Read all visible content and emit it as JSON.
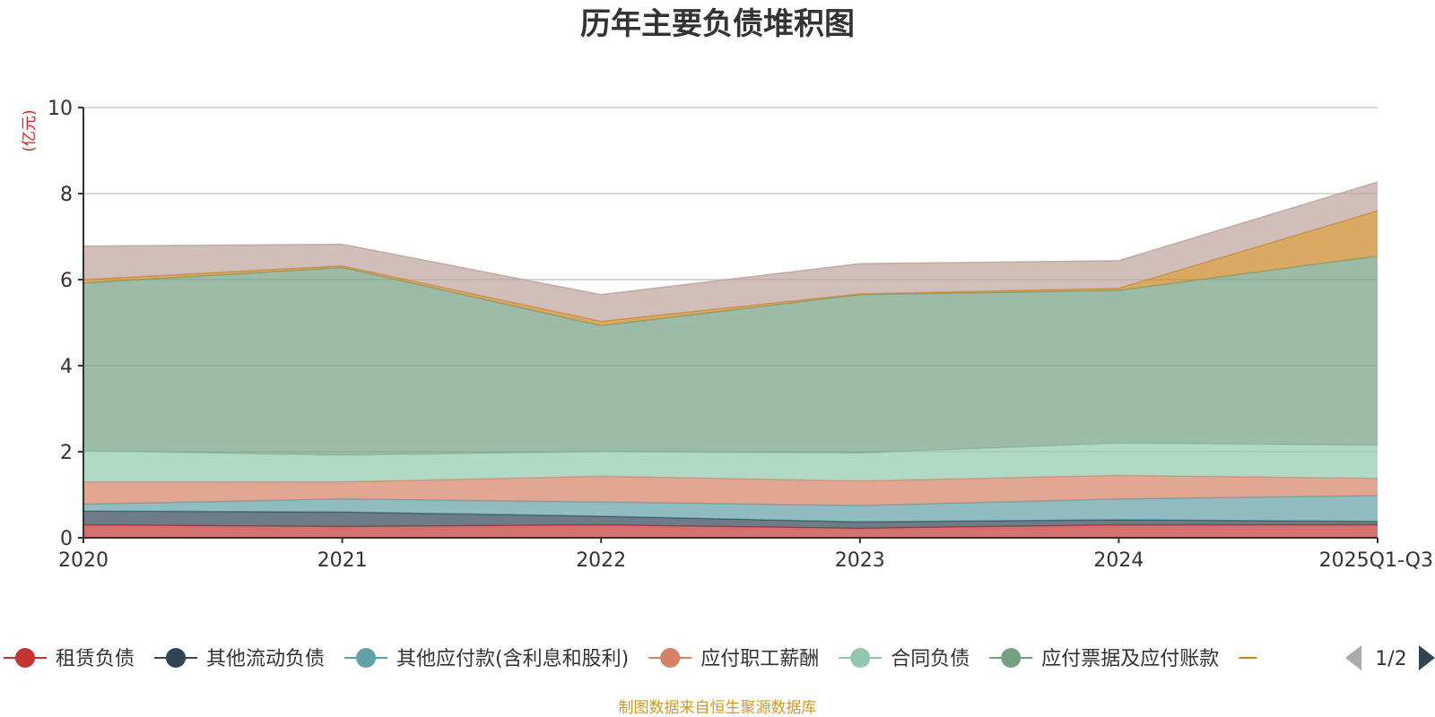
{
  "chart_data": {
    "type": "area",
    "stacked": true,
    "title": "历年主要负债堆积图",
    "unit_label": "(亿元)",
    "x": [
      "2020",
      "2021",
      "2022",
      "2023",
      "2024",
      "2025Q1-Q3"
    ],
    "ylim": [
      0,
      10
    ],
    "yticks": [
      0,
      2,
      4,
      6,
      8,
      10
    ],
    "grid": true,
    "legend_position": "bottom",
    "series": [
      {
        "name": "租赁负债",
        "color": "#c23531",
        "values": [
          0.3,
          0.26,
          0.3,
          0.22,
          0.3,
          0.3
        ]
      },
      {
        "name": "其他流动负债",
        "color": "#2f4554",
        "values": [
          0.32,
          0.34,
          0.2,
          0.15,
          0.12,
          0.08
        ]
      },
      {
        "name": "其他应付款(含利息和股利)",
        "color": "#61a0a8",
        "values": [
          0.16,
          0.3,
          0.33,
          0.38,
          0.48,
          0.6
        ]
      },
      {
        "name": "应付职工薪酬",
        "color": "#d48265",
        "values": [
          0.52,
          0.4,
          0.6,
          0.57,
          0.55,
          0.4
        ]
      },
      {
        "name": "合同负债",
        "color": "#91c7ae",
        "values": [
          0.72,
          0.62,
          0.57,
          0.65,
          0.75,
          0.77
        ]
      },
      {
        "name": "应付票据及应付账款",
        "color": "#749f83",
        "values": [
          3.9,
          4.36,
          2.93,
          3.68,
          3.55,
          4.4
        ]
      },
      {
        "name": "",
        "color": "#ca8622",
        "values": [
          0.08,
          0.04,
          0.1,
          0.02,
          0.05,
          1.05
        ]
      },
      {
        "name": "",
        "color": "#bda29a",
        "values": [
          0.78,
          0.5,
          0.62,
          0.7,
          0.64,
          0.67
        ]
      }
    ],
    "legend_page": "1/2",
    "source": "制图数据来自恒生聚源数据库"
  }
}
